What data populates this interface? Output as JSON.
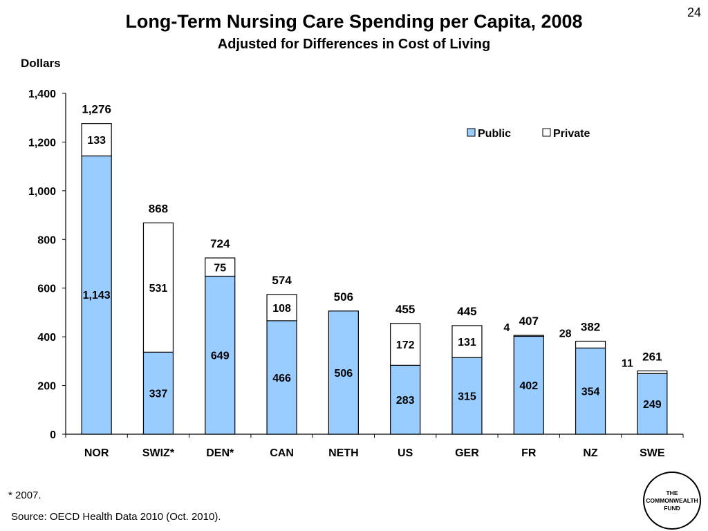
{
  "slide_number": "24",
  "title": "Long-Term Nursing Care Spending per Capita, 2008",
  "subtitle": "Adjusted for Differences in Cost of Living",
  "footnote": "* 2007.",
  "source": "Source: OECD Health Data 2010 (Oct. 2010).",
  "logo_text": "THE\nCOMMONWEALTH\nFUND",
  "chart_data": {
    "type": "bar",
    "stacked": true,
    "ylabel": "Dollars",
    "ylim": [
      0,
      1400
    ],
    "yticks": [
      0,
      200,
      400,
      600,
      800,
      1000,
      1200,
      1400
    ],
    "ytick_labels": [
      "0",
      "200",
      "400",
      "600",
      "800",
      "1,000",
      "1,200",
      "1,400"
    ],
    "categories": [
      "NOR",
      "SWIZ*",
      "DEN*",
      "CAN",
      "NETH",
      "US",
      "GER",
      "FR",
      "NZ",
      "SWE"
    ],
    "series": [
      {
        "name": "Public",
        "color": "#99ccff",
        "values": [
          1143,
          337,
          649,
          466,
          506,
          283,
          315,
          402,
          354,
          249
        ],
        "labels": [
          "1,143",
          "337",
          "649",
          "466",
          "506",
          "283",
          "315",
          "402",
          "354",
          "249"
        ]
      },
      {
        "name": "Private",
        "color": "#ffffff",
        "values": [
          133,
          531,
          75,
          108,
          0,
          172,
          131,
          4,
          28,
          11
        ],
        "labels": [
          "133",
          "531",
          "75",
          "108",
          "",
          "172",
          "131",
          "4",
          "28",
          "11"
        ]
      }
    ],
    "totals": [
      1276,
      868,
      724,
      574,
      506,
      455,
      445,
      407,
      382,
      261
    ],
    "total_labels": [
      "1,276",
      "868",
      "724",
      "574",
      "506",
      "455",
      "445",
      "407",
      "382",
      "261"
    ],
    "legend_position": "top-right",
    "grid": false
  }
}
